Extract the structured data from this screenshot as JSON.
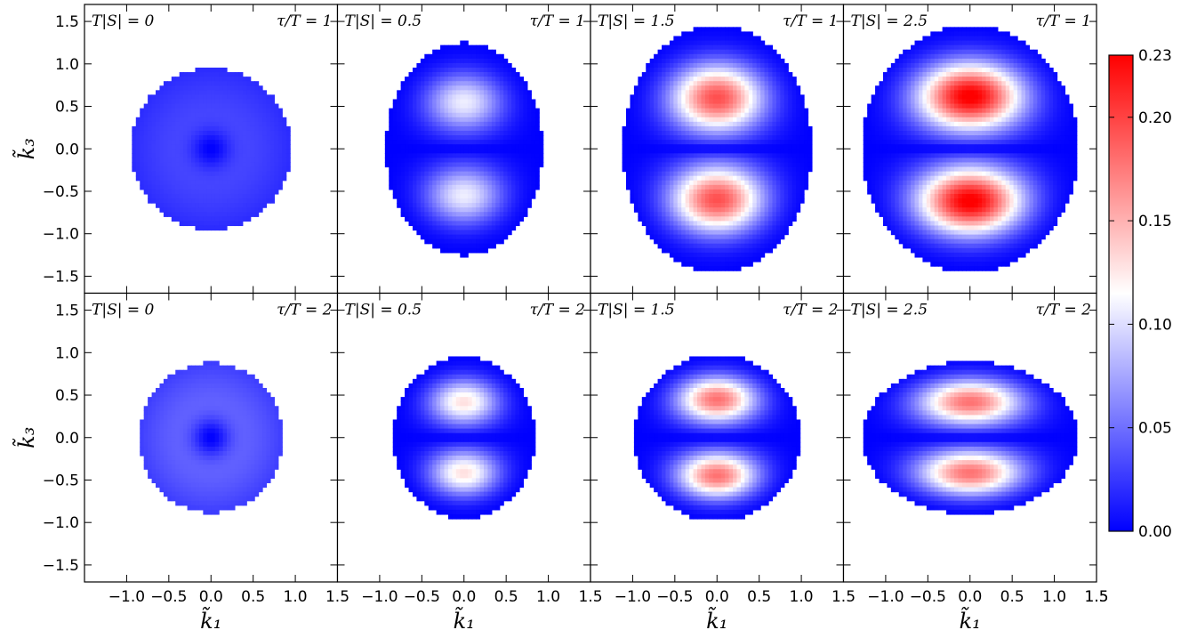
{
  "chart_data": {
    "type": "heatmap",
    "colormap": "bwr",
    "xlabel": "k̃₁",
    "ylabel": "k̃₃",
    "xlim": [
      -1.5,
      1.5
    ],
    "ylim": [
      -1.7,
      1.7
    ],
    "xticks": [
      "−1.0",
      "−0.5",
      "0.0",
      "0.5",
      "1.0",
      "1.5"
    ],
    "yticks": [
      "−1.5",
      "−1.0",
      "−0.5",
      "0.0",
      "0.5",
      "1.0",
      "1.5"
    ],
    "colorbar": {
      "min": 0.0,
      "max": 0.23,
      "ticks": [
        "0.00",
        "0.05",
        "0.10",
        "0.15",
        "0.20",
        "0.23"
      ],
      "tick_values": [
        0.0,
        0.05,
        0.1,
        0.15,
        0.2,
        0.23
      ]
    },
    "panels": [
      {
        "label_left": "T|S| = 0",
        "label_right": "τ/T = 1",
        "TS": 0,
        "tau": 1,
        "half_width": 0.95,
        "half_height": 0.95,
        "peak": 0.035,
        "peak_k3": 0.0
      },
      {
        "label_left": "T|S| = 0.5",
        "label_right": "τ/T = 1",
        "TS": 0.5,
        "tau": 1,
        "half_width": 0.93,
        "half_height": 1.25,
        "peak": 0.108,
        "peak_k3": 0.55
      },
      {
        "label_left": "T|S| = 1.5",
        "label_right": "τ/T = 1",
        "TS": 1.5,
        "tau": 1,
        "half_width": 1.12,
        "half_height": 1.45,
        "peak": 0.195,
        "peak_k3": 0.6
      },
      {
        "label_left": "T|S| = 2.5",
        "label_right": "τ/T = 1",
        "TS": 2.5,
        "tau": 1,
        "half_width": 1.28,
        "half_height": 1.45,
        "peak": 0.235,
        "peak_k3": 0.62
      },
      {
        "label_left": "T|S| = 0",
        "label_right": "τ/T = 2",
        "TS": 0,
        "tau": 2,
        "half_width": 0.85,
        "half_height": 0.88,
        "peak": 0.05,
        "peak_k3": 0.0
      },
      {
        "label_left": "T|S| = 0.5",
        "label_right": "τ/T = 2",
        "TS": 0.5,
        "tau": 2,
        "half_width": 0.84,
        "half_height": 0.95,
        "peak": 0.13,
        "peak_k3": 0.42
      },
      {
        "label_left": "T|S| = 1.5",
        "label_right": "τ/T = 2",
        "TS": 1.5,
        "tau": 2,
        "half_width": 0.98,
        "half_height": 0.98,
        "peak": 0.18,
        "peak_k3": 0.45
      },
      {
        "label_left": "T|S| = 2.5",
        "label_right": "τ/T = 2",
        "TS": 2.5,
        "tau": 2,
        "half_width": 1.28,
        "half_height": 0.9,
        "peak": 0.18,
        "peak_k3": 0.42
      }
    ]
  }
}
